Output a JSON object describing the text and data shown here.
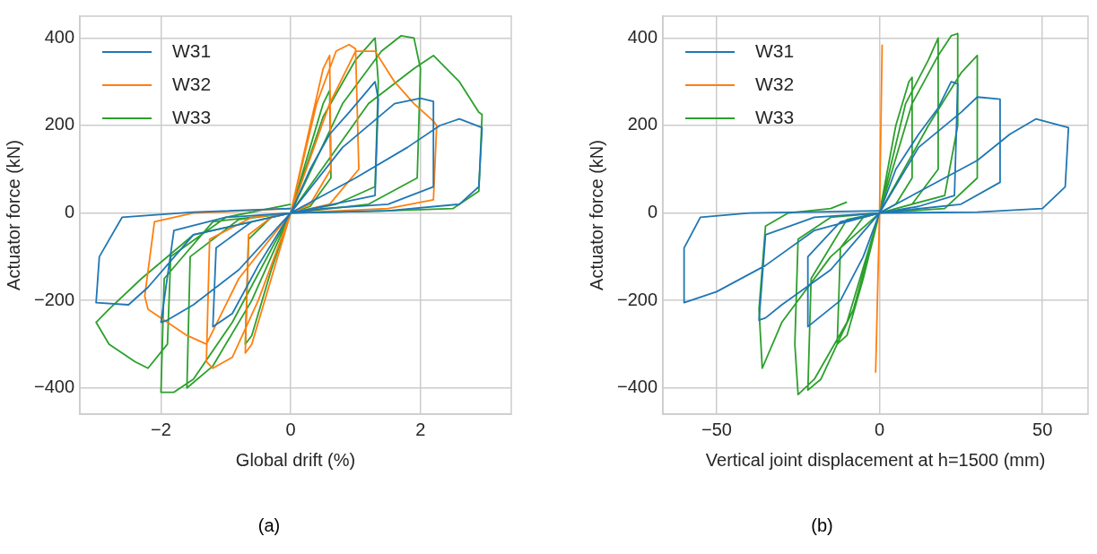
{
  "chart_data": [
    {
      "type": "line",
      "xlabel": "Global drift (%)",
      "ylabel": "Actuator force (kN)",
      "annotations": [
        "(a)"
      ],
      "xlim": [
        -3.25,
        3.4
      ],
      "ylim": [
        -460,
        450
      ],
      "xticks": [
        -2,
        0,
        2
      ],
      "yticks": [
        -400,
        -200,
        0,
        200,
        400
      ],
      "grid": true,
      "legend": "top left",
      "marker": "none",
      "line_style": "solid",
      "series": [
        {
          "name": "W31",
          "color": "#1f77b4",
          "x": [
            0,
            0.3,
            0.6,
            0.9,
            1.3,
            1.35,
            1.3,
            0.5,
            0,
            -0.5,
            -0.9,
            -1.2,
            -1.15,
            -0.6,
            0,
            0.8,
            1.6,
            2.0,
            2.2,
            2.2,
            1.5,
            0.5,
            0,
            -0.8,
            -1.5,
            -1.9,
            -2.0,
            -1.8,
            -1.0,
            0,
            1.0,
            1.8,
            2.3,
            2.6,
            2.95,
            2.9,
            2.6,
            1.5,
            0,
            -1.5,
            -2.2,
            -2.5,
            -3.0,
            -2.95,
            -2.6,
            -1.5,
            0
          ],
          "values": [
            0,
            100,
            180,
            230,
            300,
            260,
            40,
            15,
            0,
            -120,
            -230,
            -260,
            -80,
            -20,
            0,
            150,
            250,
            262,
            255,
            60,
            20,
            10,
            0,
            -130,
            -210,
            -245,
            -250,
            -40,
            -10,
            0,
            80,
            150,
            200,
            215,
            195,
            60,
            20,
            5,
            0,
            -50,
            -170,
            -210,
            -205,
            -100,
            -10,
            2,
            10
          ]
        },
        {
          "name": "W32",
          "color": "#ff7f0e",
          "x": [
            0,
            0.3,
            0.5,
            0.6,
            0.62,
            0.3,
            0,
            -0.3,
            -0.6,
            -0.7,
            -0.65,
            -0.3,
            0,
            0.4,
            0.7,
            0.9,
            1.0,
            1.05,
            0.6,
            0,
            -0.5,
            -0.9,
            -1.2,
            -1.3,
            -1.25,
            -0.6,
            0,
            0.6,
            1.0,
            1.3,
            1.6,
            1.9,
            2.2,
            2.25,
            2.2,
            1.5,
            0,
            -0.8,
            -1.3,
            -1.6,
            -2.0,
            -2.2,
            -2.25,
            -2.1,
            -1.5,
            0
          ],
          "values": [
            0,
            200,
            330,
            360,
            100,
            20,
            0,
            -150,
            -300,
            -320,
            -50,
            -10,
            0,
            250,
            370,
            385,
            375,
            100,
            20,
            0,
            -200,
            -330,
            -355,
            -340,
            -60,
            -10,
            0,
            250,
            370,
            370,
            300,
            250,
            210,
            200,
            30,
            10,
            0,
            -150,
            -300,
            -280,
            -240,
            -220,
            -190,
            -20,
            0,
            10
          ]
        },
        {
          "name": "W33",
          "color": "#2ca02c",
          "x": [
            0,
            0.3,
            0.5,
            0.6,
            0.62,
            0.3,
            0,
            -0.3,
            -0.6,
            -0.7,
            -0.65,
            -0.3,
            0,
            0.5,
            1.0,
            1.3,
            1.35,
            1.3,
            0.7,
            0,
            -0.6,
            -1.2,
            -1.6,
            -1.55,
            -0.8,
            0,
            0.8,
            1.4,
            1.7,
            1.9,
            2.0,
            1.95,
            1.2,
            0,
            -0.9,
            -1.5,
            -1.8,
            -2.0,
            -1.95,
            -1.2,
            0,
            1.2,
            1.9,
            2.2,
            2.6,
            2.9,
            2.95,
            2.9,
            2.5,
            1.5,
            0,
            -1.5,
            -2.3,
            -2.8,
            -3.0,
            -2.8,
            -2.4,
            -2.2,
            -1.9,
            -1.85,
            -1.0,
            0
          ],
          "values": [
            0,
            150,
            250,
            280,
            80,
            15,
            0,
            -130,
            -280,
            -300,
            -60,
            -10,
            0,
            220,
            350,
            400,
            300,
            60,
            20,
            0,
            -200,
            -350,
            -400,
            -100,
            -15,
            0,
            250,
            370,
            405,
            400,
            330,
            80,
            20,
            0,
            -250,
            -380,
            -410,
            -410,
            -150,
            -20,
            0,
            250,
            330,
            360,
            300,
            230,
            225,
            50,
            10,
            5,
            0,
            -50,
            -150,
            -220,
            -250,
            -300,
            -340,
            -355,
            -300,
            -100,
            -10,
            20
          ]
        }
      ]
    },
    {
      "type": "line",
      "xlabel": "Vertical joint displacement at h=1500 (mm)",
      "ylabel": "Actuator force (kN)",
      "annotations": [
        "(b)"
      ],
      "xlim": [
        -66.5,
        64
      ],
      "ylim": [
        -460,
        450
      ],
      "xticks": [
        -50,
        0,
        50
      ],
      "yticks": [
        -400,
        -200,
        0,
        200,
        400
      ],
      "grid": true,
      "legend": "top left",
      "marker": "none",
      "line_style": "solid",
      "series": [
        {
          "name": "W31",
          "color": "#1f77b4",
          "x": [
            0,
            5,
            12,
            18,
            22,
            24,
            23,
            12,
            0,
            -5,
            -12,
            -22,
            -22,
            -12,
            0,
            12,
            25,
            30,
            37,
            37,
            25,
            0,
            -15,
            -30,
            -35,
            -37,
            -35,
            -20,
            0,
            15,
            30,
            40,
            48,
            58,
            57,
            50,
            30,
            0,
            -20,
            -35,
            -50,
            -60,
            -60,
            -55,
            -40,
            0
          ],
          "values": [
            0,
            100,
            180,
            240,
            300,
            295,
            40,
            15,
            0,
            -100,
            -200,
            -260,
            -100,
            -20,
            0,
            150,
            230,
            265,
            260,
            70,
            20,
            0,
            -130,
            -210,
            -240,
            -245,
            -50,
            -10,
            0,
            60,
            120,
            180,
            215,
            195,
            60,
            10,
            2,
            0,
            -40,
            -120,
            -180,
            -205,
            -80,
            -10,
            0,
            5
          ]
        },
        {
          "name": "W32",
          "color": "#ff7f0e",
          "x": [
            -1.2,
            0,
            0.8
          ],
          "values": [
            -365,
            0,
            385
          ]
        },
        {
          "name": "W33",
          "color": "#2ca02c",
          "x": [
            0,
            5,
            9,
            10,
            10,
            5,
            0,
            -5,
            -10,
            -13,
            -12,
            -5,
            0,
            8,
            15,
            18,
            18,
            10,
            0,
            -8,
            -18,
            -22,
            -21,
            -10,
            0,
            10,
            18,
            22,
            24,
            24,
            20,
            0,
            -10,
            -20,
            -25,
            -26,
            -25,
            -15,
            0,
            15,
            25,
            30,
            30,
            20,
            0,
            -15,
            -30,
            -36,
            -37,
            -35,
            -28,
            -15,
            -10
          ],
          "values": [
            0,
            200,
            300,
            310,
            80,
            20,
            0,
            -150,
            -280,
            -300,
            -80,
            -10,
            0,
            250,
            350,
            400,
            100,
            20,
            0,
            -220,
            -380,
            -405,
            -150,
            -15,
            0,
            250,
            360,
            405,
            410,
            200,
            40,
            0,
            -250,
            -380,
            -415,
            -300,
            -60,
            -10,
            0,
            200,
            320,
            360,
            80,
            10,
            0,
            -100,
            -250,
            -355,
            -220,
            -30,
            0,
            10,
            25
          ]
        }
      ]
    }
  ]
}
